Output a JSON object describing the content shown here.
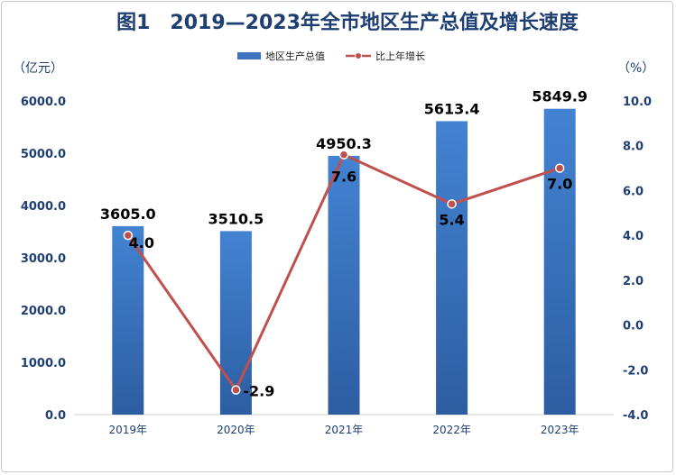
{
  "chart_data": {
    "type": "bar",
    "title": "图1　2019—2023年全市地区生产总值及增长速度",
    "categories": [
      "2019年",
      "2020年",
      "2021年",
      "2022年",
      "2023年"
    ],
    "series": [
      {
        "name": "地区生产总值",
        "type": "bar",
        "axis": "left",
        "values": [
          3605.0,
          3510.5,
          4950.3,
          5613.4,
          5849.9
        ],
        "labels": [
          "3605.0",
          "3510.5",
          "4950.3",
          "5613.4",
          "5849.9"
        ],
        "color": "#3d73bf"
      },
      {
        "name": "比上年增长",
        "type": "line",
        "axis": "right",
        "values": [
          4.0,
          -2.9,
          7.6,
          5.4,
          7.0
        ],
        "labels": [
          "4.0",
          "-2.9",
          "7.6",
          "5.4",
          "7.0"
        ],
        "color": "#c0504d"
      }
    ],
    "y_left": {
      "unit": "（亿元）",
      "ylim": [
        0,
        6000
      ],
      "ticks": [
        "0.0",
        "1000.0",
        "2000.0",
        "3000.0",
        "4000.0",
        "5000.0",
        "6000.0"
      ]
    },
    "y_right": {
      "unit": "（%）",
      "ylim": [
        -4,
        10
      ],
      "ticks": [
        "-4.0",
        "-2.0",
        "0.0",
        "2.0",
        "4.0",
        "6.0",
        "8.0",
        "10.0"
      ]
    },
    "legend_position": "top-center",
    "grid": false
  }
}
